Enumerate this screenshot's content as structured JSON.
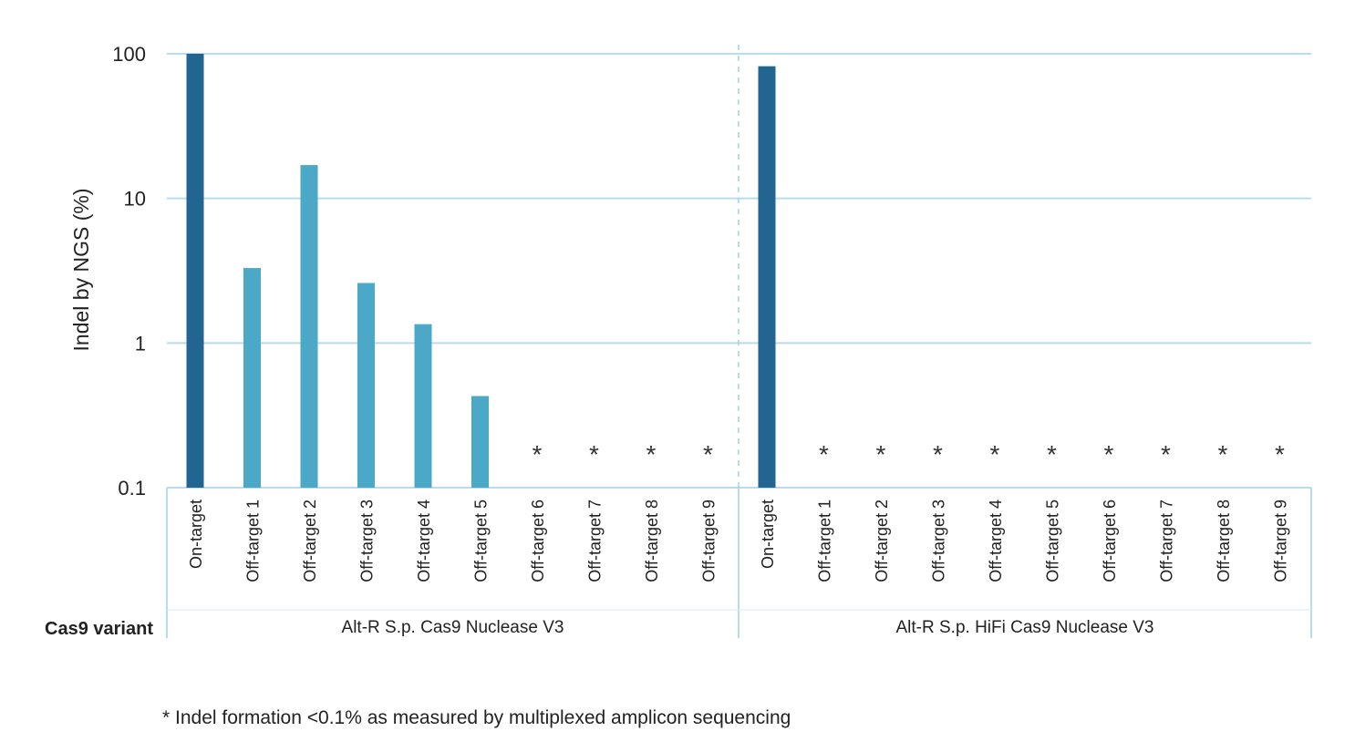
{
  "chart_data": {
    "type": "bar",
    "ylabel": "Indel by NGS (%)",
    "yscale": "log",
    "ylim": [
      0.1,
      100
    ],
    "yticks": [
      "100",
      "10",
      "1",
      "0.1"
    ],
    "grid": true,
    "row_label": "Cas9 variant",
    "below_threshold_marker": "*",
    "groups": [
      {
        "name": "Alt-R S.p. Cas9 Nuclease V3",
        "categories": [
          "On-target",
          "Off-target 1",
          "Off-target 2",
          "Off-target 3",
          "Off-target 4",
          "Off-target 5",
          "Off-target 6",
          "Off-target 7",
          "Off-target 8",
          "Off-target 9"
        ],
        "values": [
          100,
          3.3,
          17,
          2.6,
          1.35,
          0.43,
          null,
          null,
          null,
          null
        ],
        "colors": [
          "#236591",
          "#4ba8c6",
          "#4ba8c6",
          "#4ba8c6",
          "#4ba8c6",
          "#4ba8c6",
          "#4ba8c6",
          "#4ba8c6",
          "#4ba8c6",
          "#4ba8c6"
        ]
      },
      {
        "name": "Alt-R S.p. HiFi Cas9 Nuclease V3",
        "categories": [
          "On-target",
          "Off-target 1",
          "Off-target 2",
          "Off-target 3",
          "Off-target 4",
          "Off-target 5",
          "Off-target 6",
          "Off-target 7",
          "Off-target 8",
          "Off-target 9"
        ],
        "values": [
          82,
          null,
          null,
          null,
          null,
          null,
          null,
          null,
          null,
          null
        ],
        "colors": [
          "#236591",
          "#4ba8c6",
          "#4ba8c6",
          "#4ba8c6",
          "#4ba8c6",
          "#4ba8c6",
          "#4ba8c6",
          "#4ba8c6",
          "#4ba8c6",
          "#4ba8c6"
        ]
      }
    ],
    "footnote": "* Indel formation <0.1% as measured by multiplexed amplicon sequencing"
  }
}
